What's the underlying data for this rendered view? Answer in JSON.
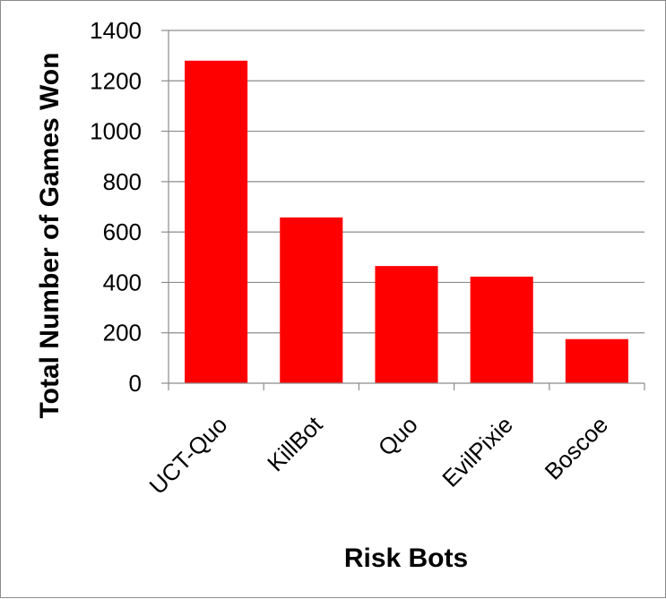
{
  "chart_data": {
    "type": "bar",
    "title": "",
    "xlabel": "Risk Bots",
    "ylabel": "Total Number of Games Won",
    "categories": [
      "UCT-Quo",
      "KillBot",
      "Quo",
      "EvilPixie",
      "Boscoe"
    ],
    "values": [
      1280,
      658,
      465,
      423,
      175
    ],
    "ylim": [
      0,
      1400
    ],
    "yticks": [
      "0",
      "200",
      "400",
      "600",
      "800",
      "1000",
      "1200",
      "1400"
    ],
    "grid": true,
    "legend": "none",
    "bar_color": "#ff0000",
    "grid_color": "#8c8c8c"
  }
}
